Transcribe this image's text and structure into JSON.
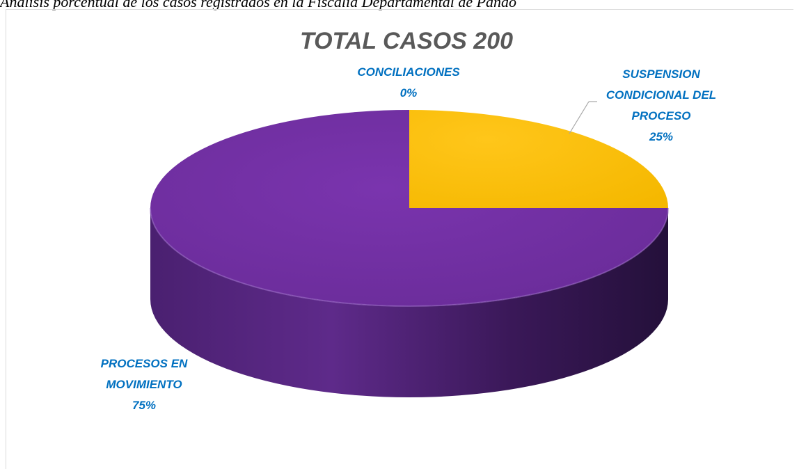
{
  "caption": "Análisis porcentual de los casos registrados en la Fiscalía Departamental de Pando",
  "chart_data": {
    "type": "pie",
    "title": "TOTAL CASOS 200",
    "label_color": "#0070c0",
    "slices": [
      {
        "name": "SUSPENSION CONDICIONAL DEL PROCESO",
        "label_lines": [
          "SUSPENSION",
          "CONDICIONAL DEL",
          "PROCESO"
        ],
        "value": 25,
        "pct_label": "25%",
        "color": "#ffc000"
      },
      {
        "name": "PROCESOS EN MOVIMIENTO",
        "label_lines": [
          "PROCESOS EN",
          "MOVIMIENTO"
        ],
        "value": 75,
        "pct_label": "75%",
        "color": "#7030a0"
      },
      {
        "name": "CONCILIACIONES",
        "label_lines": [
          "CONCILIACIONES"
        ],
        "value": 0,
        "pct_label": "0%",
        "color": "#5b9bd5"
      }
    ]
  }
}
